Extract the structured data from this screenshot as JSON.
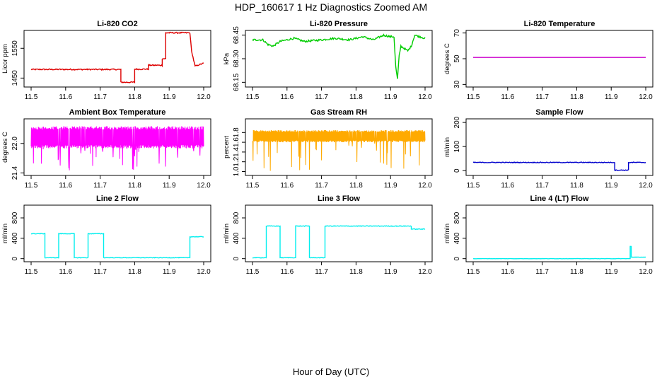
{
  "page": {
    "title": "HDP_160617  1 Hz Diagnostics Zoomed AM",
    "xlabel": "Hour of Day (UTC)"
  },
  "chart_data": [
    {
      "type": "line",
      "title": "Li-820 CO2",
      "ylabel": "Licor ppm",
      "xlim": [
        11.5,
        12.0
      ],
      "ylim": [
        1420,
        1610
      ],
      "xticks": [
        "11.5",
        "11.6",
        "11.7",
        "11.8",
        "11.9",
        "12.0"
      ],
      "yticks": [
        "1450",
        "1550"
      ],
      "yticks_at": [
        1450,
        1550
      ],
      "color": "#dd0000",
      "style": "noisy",
      "x": [
        11.5,
        11.76,
        11.76,
        11.8,
        11.8,
        11.84,
        11.84,
        11.88,
        11.88,
        11.89,
        11.89,
        11.96,
        11.965,
        11.975,
        12.0
      ],
      "y": [
        1479,
        1479,
        1436,
        1436,
        1480,
        1480,
        1493,
        1493,
        1515,
        1515,
        1602,
        1602,
        1540,
        1490,
        1500
      ],
      "noise": 2
    },
    {
      "type": "line",
      "title": "Li-820 Pressure",
      "ylabel": "kPa",
      "xlim": [
        11.5,
        12.0
      ],
      "ylim": [
        68.12,
        68.48
      ],
      "xticks": [
        "11.5",
        "11.6",
        "11.7",
        "11.8",
        "11.9",
        "12.0"
      ],
      "yticks": [
        "68.15",
        "68.30",
        "68.45"
      ],
      "yticks_at": [
        68.15,
        68.3,
        68.45
      ],
      "color": "#00cc00",
      "style": "noisy",
      "x": [
        11.5,
        11.53,
        11.545,
        11.56,
        11.58,
        11.62,
        11.65,
        11.7,
        11.74,
        11.78,
        11.82,
        11.85,
        11.88,
        11.9,
        11.91,
        11.915,
        11.92,
        11.925,
        11.93,
        11.95,
        11.96,
        11.97,
        12.0
      ],
      "y": [
        68.42,
        68.42,
        68.39,
        68.38,
        68.41,
        68.43,
        68.41,
        68.42,
        68.43,
        68.42,
        68.44,
        68.42,
        68.45,
        68.44,
        68.44,
        68.25,
        68.17,
        68.32,
        68.38,
        68.35,
        68.38,
        68.45,
        68.43
      ],
      "noise": 0.006
    },
    {
      "type": "line",
      "title": "Li-820 Temperature",
      "ylabel": "degrees C",
      "xlim": [
        11.5,
        12.0
      ],
      "ylim": [
        28,
        72
      ],
      "xticks": [
        "11.5",
        "11.6",
        "11.7",
        "11.8",
        "11.9",
        "12.0"
      ],
      "yticks": [
        "30",
        "50",
        "70"
      ],
      "yticks_at": [
        30,
        50,
        70
      ],
      "color": "#cc00cc",
      "style": "flat",
      "x": [
        11.5,
        12.0
      ],
      "y": [
        51,
        51
      ],
      "noise": 0
    },
    {
      "type": "line",
      "title": "Ambient Box Temperature",
      "ylabel": "degrees C",
      "xlim": [
        11.5,
        12.0
      ],
      "ylim": [
        21.35,
        22.5
      ],
      "xticks": [
        "11.5",
        "11.6",
        "11.7",
        "11.8",
        "11.9",
        "12.0"
      ],
      "yticks": [
        "21.4",
        "22.0"
      ],
      "yticks_at": [
        21.4,
        22.0
      ],
      "color": "#ff00ff",
      "style": "band",
      "band": [
        21.9,
        22.35
      ],
      "spikes_down_to": 21.45,
      "x": [
        11.5,
        12.0
      ],
      "y": [
        22.1,
        22.1
      ],
      "noise": 0
    },
    {
      "type": "line",
      "title": "Gas Stream RH",
      "ylabel": "percent",
      "xlim": [
        11.5,
        12.0
      ],
      "ylim": [
        0.92,
        2.08
      ],
      "xticks": [
        "11.5",
        "11.6",
        "11.7",
        "11.8",
        "11.9",
        "12.0"
      ],
      "yticks": [
        "1.0",
        "1.2",
        "1.4",
        "1.6",
        "1.8"
      ],
      "yticks_at": [
        1.0,
        1.2,
        1.4,
        1.6,
        1.8
      ],
      "color": "#ffaa00",
      "style": "band",
      "band": [
        1.6,
        1.85
      ],
      "spikes_down_to": 1.0,
      "x": [
        11.5,
        12.0
      ],
      "y": [
        1.72,
        1.72
      ],
      "noise": 0
    },
    {
      "type": "line",
      "title": "Sample Flow",
      "ylabel": "ml/min",
      "xlim": [
        11.5,
        12.0
      ],
      "ylim": [
        -20,
        215
      ],
      "xticks": [
        "11.5",
        "11.6",
        "11.7",
        "11.8",
        "11.9",
        "12.0"
      ],
      "yticks": [
        "0",
        "100",
        "200"
      ],
      "yticks_at": [
        0,
        100,
        200
      ],
      "color": "#0000cc",
      "style": "noisy",
      "x": [
        11.5,
        11.91,
        11.91,
        11.95,
        11.95,
        12.0
      ],
      "y": [
        34,
        34,
        2,
        2,
        34,
        34
      ],
      "noise": 1.5
    },
    {
      "type": "line",
      "title": "Line 2 Flow",
      "ylabel": "ml/min",
      "xlim": [
        11.5,
        12.0
      ],
      "ylim": [
        -60,
        1050
      ],
      "xticks": [
        "11.5",
        "11.6",
        "11.7",
        "11.8",
        "11.9",
        "12.0"
      ],
      "yticks": [
        "0",
        "400",
        "800"
      ],
      "yticks_at": [
        0,
        400,
        800
      ],
      "color": "#00eeee",
      "style": "noisy",
      "x": [
        11.5,
        11.54,
        11.54,
        11.58,
        11.58,
        11.625,
        11.625,
        11.665,
        11.665,
        11.71,
        11.71,
        11.96,
        11.96,
        12.0
      ],
      "y": [
        490,
        490,
        20,
        20,
        490,
        490,
        20,
        20,
        490,
        490,
        20,
        20,
        430,
        430
      ],
      "noise": 6
    },
    {
      "type": "line",
      "title": "Line 3 Flow",
      "ylabel": "ml/min",
      "xlim": [
        11.5,
        12.0
      ],
      "ylim": [
        -60,
        1050
      ],
      "xticks": [
        "11.5",
        "11.6",
        "11.7",
        "11.8",
        "11.9",
        "12.0"
      ],
      "yticks": [
        "0",
        "400",
        "800"
      ],
      "yticks_at": [
        0,
        400,
        800
      ],
      "color": "#00eeee",
      "style": "noisy",
      "x": [
        11.5,
        11.54,
        11.54,
        11.58,
        11.58,
        11.625,
        11.625,
        11.665,
        11.665,
        11.71,
        11.71,
        11.96,
        11.96,
        12.0
      ],
      "y": [
        20,
        20,
        640,
        640,
        20,
        20,
        640,
        640,
        20,
        20,
        640,
        640,
        580,
        580
      ],
      "noise": 6
    },
    {
      "type": "line",
      "title": "Line 4 (LT) Flow",
      "ylabel": "ml/min",
      "xlim": [
        11.5,
        12.0
      ],
      "ylim": [
        -60,
        1050
      ],
      "xticks": [
        "11.5",
        "11.6",
        "11.7",
        "11.8",
        "11.9",
        "12.0"
      ],
      "yticks": [
        "0",
        "400",
        "800"
      ],
      "yticks_at": [
        0,
        400,
        800
      ],
      "color": "#00eeee",
      "style": "noisy",
      "x": [
        11.5,
        11.955,
        11.955,
        11.958,
        11.958,
        11.962,
        11.962,
        12.0
      ],
      "y": [
        0,
        0,
        240,
        240,
        30,
        30,
        30,
        30
      ],
      "noise": 2
    }
  ]
}
